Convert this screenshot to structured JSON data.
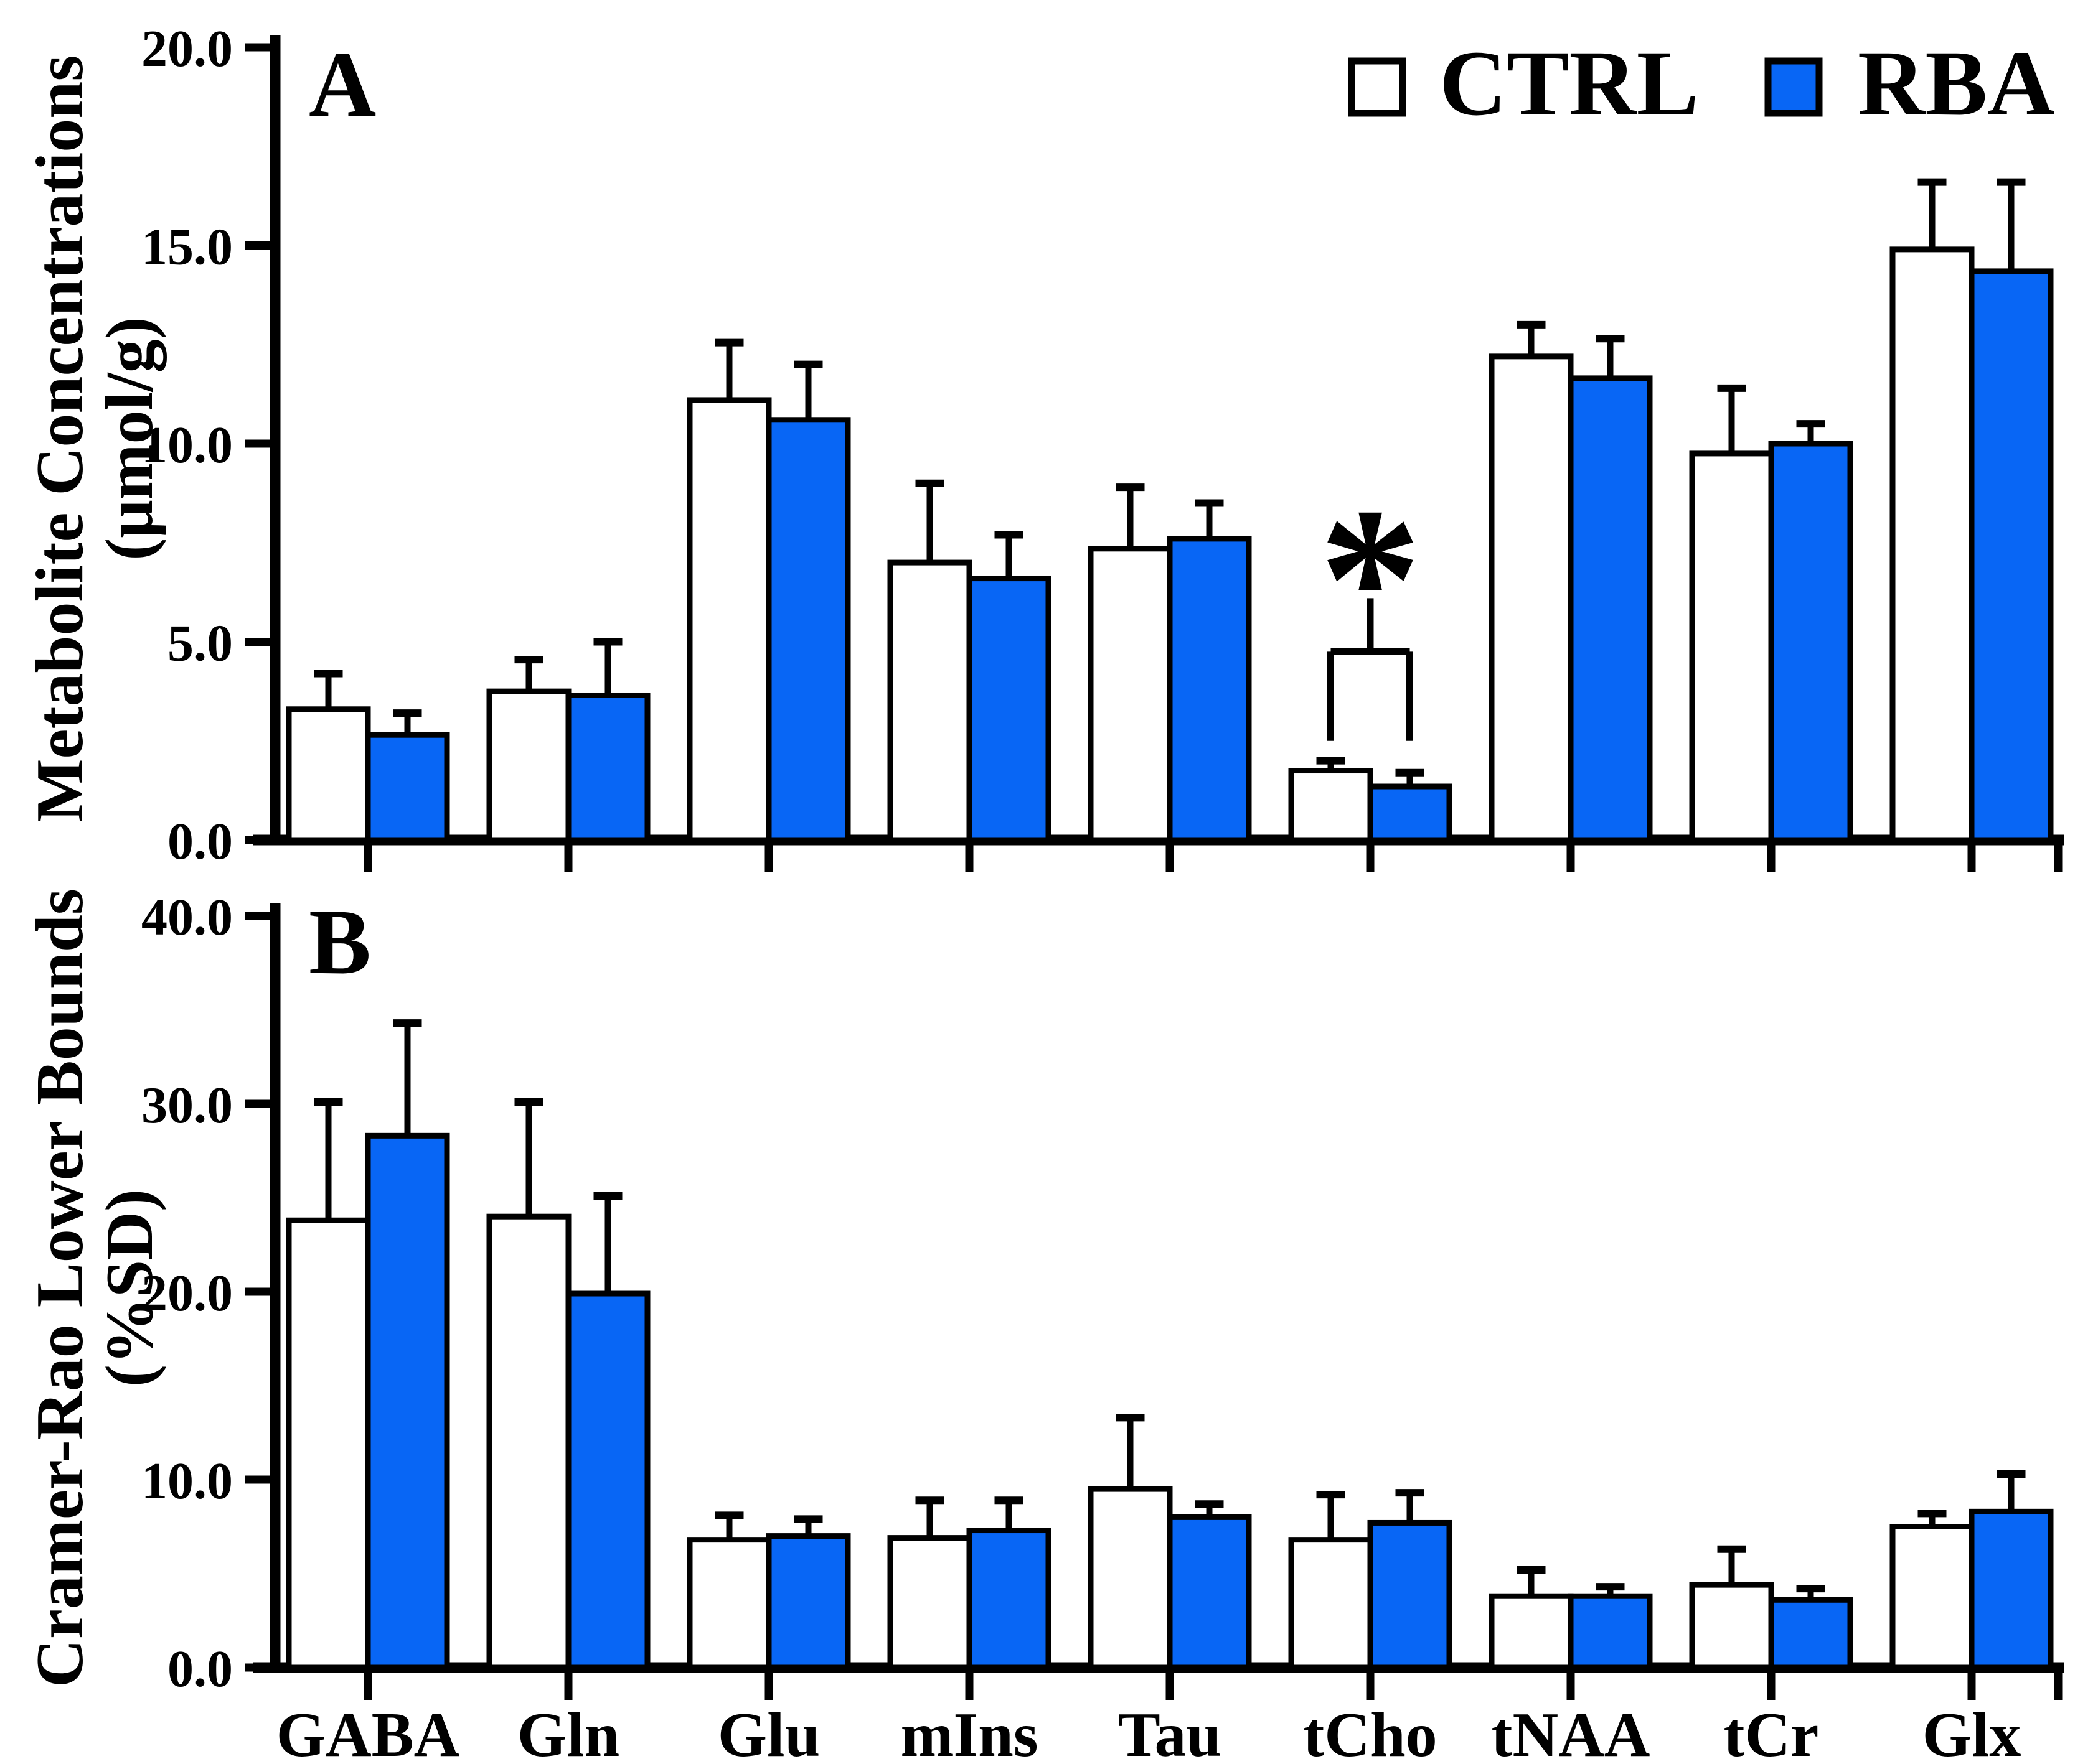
{
  "colors": {
    "background": "#ffffff",
    "ctrl_fill": "#ffffff",
    "rba_fill": "#0866f5",
    "stroke": "#000000"
  },
  "legend": {
    "items": [
      {
        "label": "CTRL",
        "color": "#ffffff"
      },
      {
        "label": "RBA",
        "color": "#0866f5"
      }
    ]
  },
  "chart_data": [
    {
      "type": "bar",
      "panel_label": "A",
      "ylabel": "Metabolite Concentrations",
      "ylabel_units": "(μmol/g)",
      "ylim": [
        0,
        20
      ],
      "ytick_values": [
        0,
        5,
        10,
        15,
        20
      ],
      "ytick_labels": [
        "0.0",
        "5.0",
        "10.0",
        "15.0",
        "20.0"
      ],
      "grid": false,
      "legend_position": "top-right",
      "show_x_labels": false,
      "categories": [
        "GABA",
        "Gln",
        "Glu",
        "mIns",
        "Tau",
        "tCho",
        "tNAA",
        "tCr",
        "Glx"
      ],
      "series": [
        {
          "name": "CTRL",
          "values": [
            3.3,
            3.75,
            11.1,
            7.0,
            7.35,
            1.75,
            12.2,
            9.75,
            14.9
          ],
          "errors_up": [
            0.9,
            0.8,
            1.45,
            2.0,
            1.55,
            0.25,
            0.8,
            1.65,
            1.7
          ]
        },
        {
          "name": "RBA",
          "values": [
            2.65,
            3.65,
            10.6,
            6.6,
            7.6,
            1.35,
            11.65,
            10.0,
            14.35
          ],
          "errors_up": [
            0.55,
            1.35,
            1.4,
            1.1,
            0.9,
            0.35,
            1.0,
            0.5,
            2.25
          ]
        }
      ],
      "annotation": {
        "type": "significance-bracket",
        "category": "tCho",
        "symbol": "*",
        "bracket_y": 4.75,
        "leg_bottom_y": 2.5,
        "stem_top_y": 6.1
      }
    },
    {
      "type": "bar",
      "panel_label": "B",
      "ylabel": "Cramer-Rao Lower Bounds",
      "ylabel_units": "(%SD)",
      "ylim": [
        0,
        40
      ],
      "ytick_values": [
        0,
        10,
        20,
        30,
        40
      ],
      "ytick_labels": [
        "0.0",
        "10.0",
        "20.0",
        "30.0",
        "40.0"
      ],
      "grid": false,
      "legend_position": "none",
      "show_x_labels": true,
      "categories": [
        "GABA",
        "Gln",
        "Glu",
        "mIns",
        "Tau",
        "tCho",
        "tNAA",
        "tCr",
        "Glx"
      ],
      "series": [
        {
          "name": "CTRL",
          "values": [
            23.8,
            24.0,
            6.8,
            6.9,
            9.5,
            6.8,
            3.8,
            4.4,
            7.5
          ],
          "errors_up": [
            6.3,
            6.1,
            1.3,
            2.0,
            3.8,
            2.4,
            1.4,
            1.9,
            0.7
          ]
        },
        {
          "name": "RBA",
          "values": [
            28.3,
            19.9,
            7.0,
            7.3,
            8.0,
            7.7,
            3.8,
            3.6,
            8.3
          ],
          "errors_up": [
            6.0,
            5.2,
            0.9,
            1.6,
            0.7,
            1.6,
            0.5,
            0.6,
            2.0
          ]
        }
      ],
      "annotation": null
    }
  ]
}
